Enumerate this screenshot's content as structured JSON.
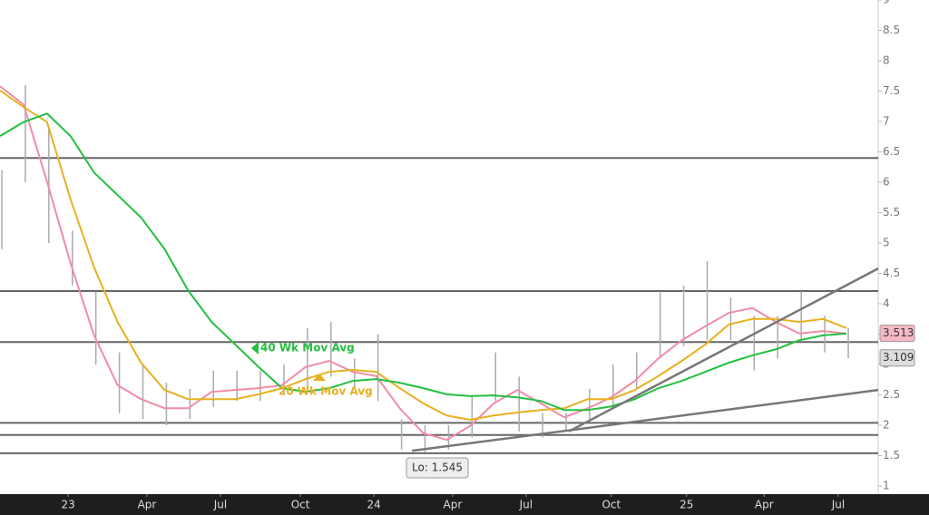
{
  "chart_data": {
    "type": "line",
    "xlim": [
      0,
      149.4
    ],
    "xticks": [
      {
        "value": 11.6,
        "label": "23"
      },
      {
        "value": 25,
        "label": "Apr"
      },
      {
        "value": 37.5,
        "label": "Jul"
      },
      {
        "value": 51.1,
        "label": "Oct"
      },
      {
        "value": 63.6,
        "label": "24"
      },
      {
        "value": 77,
        "label": "Apr"
      },
      {
        "value": 89.5,
        "label": "Jul"
      },
      {
        "value": 104,
        "label": "Oct"
      },
      {
        "value": 116.8,
        "label": "25"
      },
      {
        "value": 130,
        "label": "Apr"
      },
      {
        "value": 142.6,
        "label": "Jul"
      }
    ],
    "ylim": [
      0.866,
      9
    ],
    "yticks": [
      1,
      1.5,
      2,
      2.5,
      3,
      3.5,
      4,
      4.5,
      5,
      5.5,
      6,
      6.5,
      7,
      7.5,
      8,
      8.5,
      9
    ],
    "x": [
      0,
      4,
      8,
      12,
      16,
      20,
      24,
      28,
      32,
      36,
      40,
      44,
      48,
      52,
      56,
      60,
      64,
      68,
      72,
      76,
      80,
      84,
      88,
      92,
      96,
      100,
      104,
      108,
      112,
      116,
      120,
      124,
      128,
      132,
      136,
      140,
      144
    ],
    "series": [
      {
        "color": "#f08ca4",
        "values": [
          7.58,
          7.28,
          6.01,
          4.67,
          3.48,
          2.66,
          2.43,
          2.28,
          2.28,
          2.55,
          2.58,
          2.61,
          2.66,
          2.96,
          3.06,
          2.88,
          2.81,
          2.28,
          1.87,
          1.76,
          1.99,
          2.36,
          2.58,
          2.36,
          2.13,
          2.28,
          2.46,
          2.73,
          3.1,
          3.4,
          3.63,
          3.85,
          3.93,
          3.7,
          3.51,
          3.55,
          3.51
        ]
      },
      {
        "color": "#e8b020",
        "values": [
          7.51,
          7.24,
          6.99,
          5.72,
          4.6,
          3.7,
          3.03,
          2.58,
          2.43,
          2.43,
          2.43,
          2.51,
          2.61,
          2.76,
          2.88,
          2.91,
          2.88,
          2.61,
          2.36,
          2.16,
          2.09,
          2.16,
          2.21,
          2.25,
          2.28,
          2.43,
          2.43,
          2.58,
          2.81,
          3.06,
          3.33,
          3.66,
          3.75,
          3.75,
          3.7,
          3.75,
          3.6
        ]
      },
      {
        "color": "#22c040",
        "values": [
          6.76,
          6.99,
          7.13,
          6.76,
          6.16,
          5.79,
          5.42,
          4.9,
          4.22,
          3.7,
          3.33,
          2.96,
          2.61,
          2.55,
          2.61,
          2.73,
          2.76,
          2.7,
          2.61,
          2.51,
          2.48,
          2.49,
          2.46,
          2.4,
          2.25,
          2.25,
          2.31,
          2.43,
          2.61,
          2.73,
          2.88,
          3.03,
          3.15,
          3.25,
          3.4,
          3.48,
          3.51
        ]
      }
    ],
    "bars": {
      "color": "#aaaaaa",
      "high": [
        6.2,
        7.6,
        6.9,
        5.2,
        4.2,
        3.2,
        3.0,
        2.7,
        2.6,
        2.9,
        2.9,
        2.9,
        3.0,
        3.6,
        3.7,
        3.1,
        3.5,
        2.1,
        2.0,
        2.0,
        2.5,
        3.2,
        2.8,
        2.2,
        2.2,
        2.6,
        3.0,
        3.2,
        4.2,
        4.3,
        4.7,
        4.1,
        3.8,
        3.8,
        4.2,
        3.8,
        3.6
      ],
      "low": [
        4.9,
        6.0,
        5.0,
        4.3,
        3.0,
        2.2,
        2.1,
        2.0,
        2.1,
        2.3,
        2.4,
        2.4,
        2.5,
        2.6,
        2.8,
        2.6,
        2.4,
        1.6,
        1.55,
        1.6,
        1.8,
        2.4,
        1.9,
        1.8,
        1.9,
        2.1,
        2.3,
        2.6,
        3.1,
        3.3,
        3.4,
        3.4,
        2.9,
        3.1,
        3.4,
        3.2,
        3.1
      ]
    },
    "levels": [
      6.4,
      4.21,
      3.37,
      2.04,
      1.84,
      1.54
    ],
    "trendlines": [
      {
        "x": [
          96.8,
          149.4
        ],
        "y": [
          1.9,
          4.58
        ]
      },
      {
        "x": [
          70.1,
          149.4
        ],
        "y": [
          1.58,
          2.58
        ]
      }
    ],
    "annotations": [
      {
        "text": "40 Wk Mov Avg",
        "color": "#22c040"
      },
      {
        "text": "20 Wk Mov Avg",
        "color": "#e8b020"
      },
      {
        "text": "Lo: 1.545",
        "color": "#333333"
      }
    ],
    "price_tags": [
      {
        "value": 3.513,
        "color": "#f7b8c6"
      },
      {
        "value": 3.109,
        "color": "#dddddd"
      }
    ]
  }
}
